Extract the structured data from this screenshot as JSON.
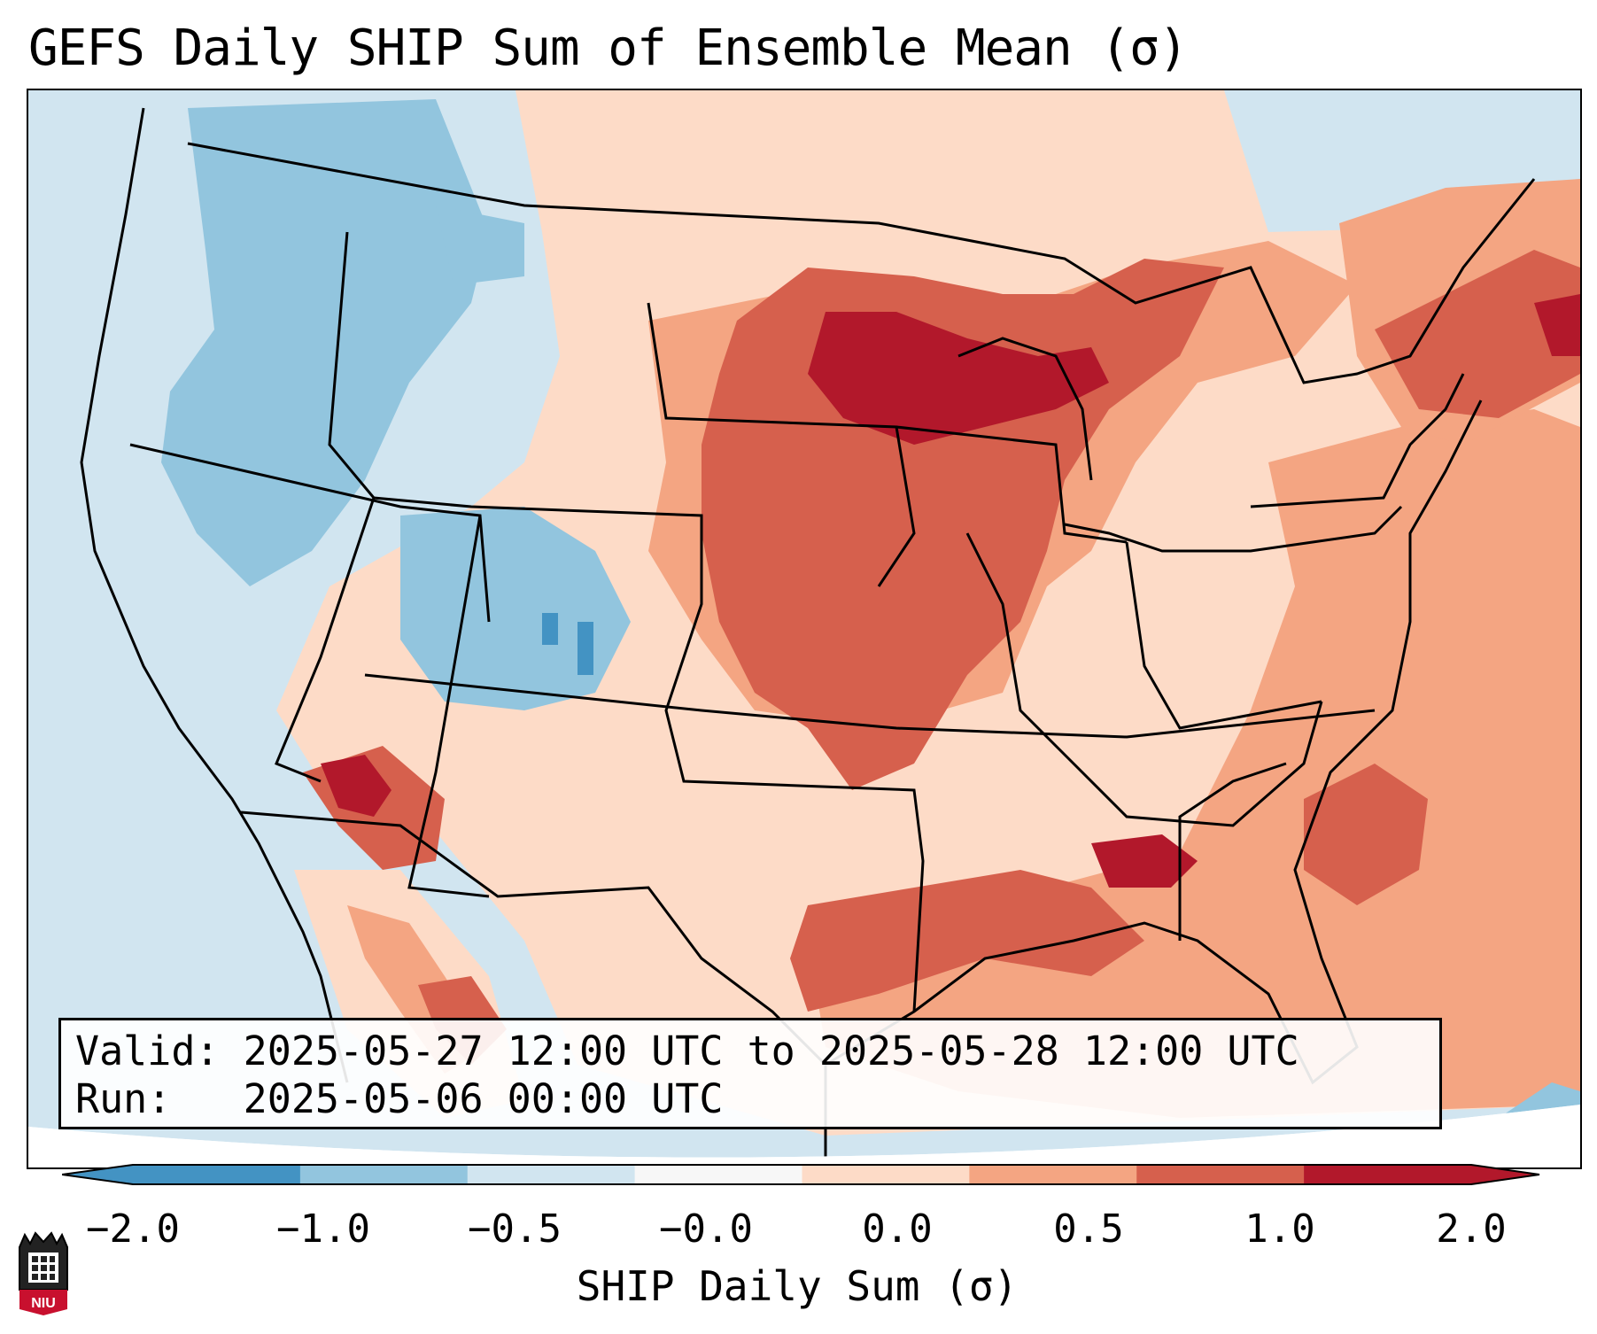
{
  "title": "GEFS Daily SHIP Sum of Ensemble Mean (σ)",
  "info": {
    "valid": "Valid: 2025-05-27 12:00 UTC to 2025-05-28 12:00 UTC",
    "run": "Run:   2025-05-06 00:00 UTC"
  },
  "colorbar": {
    "label": "SHIP Daily Sum (σ)",
    "ticks": [
      "−2.0",
      "−1.0",
      "−0.5",
      "−0.0",
      "0.0",
      "0.5",
      "1.0",
      "2.0"
    ],
    "colors": [
      "#4393c3",
      "#92c5de",
      "#d1e5f0",
      "#f7f7f7",
      "#fddbc7",
      "#f4a582",
      "#d6604d",
      "#b2182b"
    ],
    "extend": "both"
  },
  "logo": {
    "text": "NIU"
  }
}
